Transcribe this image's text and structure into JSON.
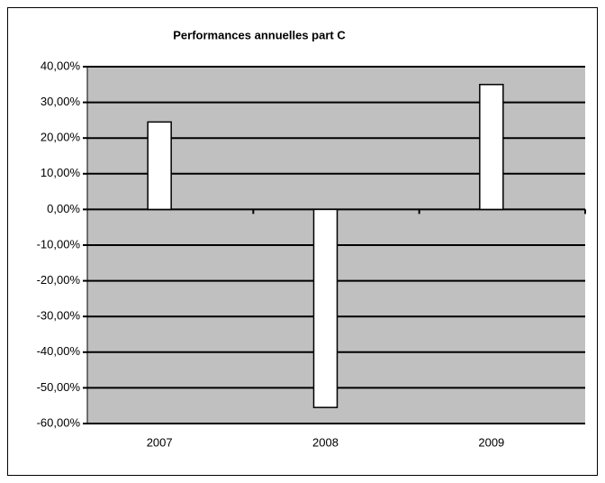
{
  "chart_data": {
    "type": "bar",
    "title": "Performances  annuelles part C",
    "categories": [
      "2007",
      "2008",
      "2009"
    ],
    "values": [
      24.5,
      -55.5,
      35
    ],
    "color": "#ffffff",
    "ylim": [
      -60,
      40
    ],
    "yticks": [
      {
        "value": -60,
        "label": "-60,00%"
      },
      {
        "value": -50,
        "label": "-50,00%"
      },
      {
        "value": -40,
        "label": "-40,00%"
      },
      {
        "value": -30,
        "label": "-30,00%"
      },
      {
        "value": -20,
        "label": "-20,00%"
      },
      {
        "value": -10,
        "label": "-10,00%"
      },
      {
        "value": 0,
        "label": "0,00%"
      },
      {
        "value": 10,
        "label": "10,00%"
      },
      {
        "value": 20,
        "label": "20,00%"
      },
      {
        "value": 30,
        "label": "30,00%"
      },
      {
        "value": 40,
        "label": "40,00%"
      }
    ],
    "grid": true
  }
}
